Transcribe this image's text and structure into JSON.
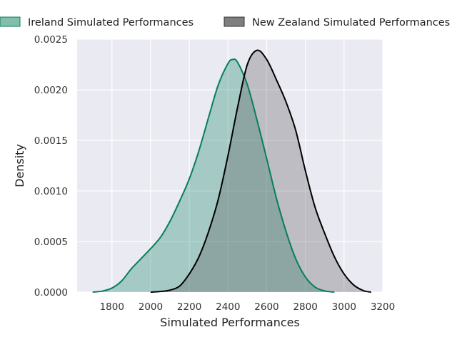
{
  "chart_data": {
    "type": "area",
    "xlabel": "Simulated Performances",
    "ylabel": "Density",
    "xlim": [
      1620,
      3200
    ],
    "ylim": [
      0,
      0.0025
    ],
    "x_ticks": [
      "1800",
      "2000",
      "2200",
      "2400",
      "2600",
      "2800",
      "3000",
      "3200"
    ],
    "y_ticks": [
      "0.0000",
      "0.0005",
      "0.0010",
      "0.0015",
      "0.0020",
      "0.0025"
    ],
    "grid": true,
    "legend_position": "top",
    "series": [
      {
        "name": "Ireland Simulated Performances",
        "color": "#077e5b",
        "fill": "#077e5b",
        "points": [
          [
            1700,
            0.0
          ],
          [
            1750,
            1e-05
          ],
          [
            1800,
            4e-05
          ],
          [
            1850,
            0.00011
          ],
          [
            1900,
            0.00023
          ],
          [
            1950,
            0.00033
          ],
          [
            2000,
            0.00043
          ],
          [
            2050,
            0.00054
          ],
          [
            2100,
            0.0007
          ],
          [
            2150,
            0.0009
          ],
          [
            2200,
            0.00112
          ],
          [
            2250,
            0.0014
          ],
          [
            2300,
            0.00173
          ],
          [
            2350,
            0.00205
          ],
          [
            2400,
            0.00226
          ],
          [
            2425,
            0.0023
          ],
          [
            2450,
            0.00227
          ],
          [
            2500,
            0.00205
          ],
          [
            2550,
            0.0017
          ],
          [
            2600,
            0.00132
          ],
          [
            2650,
            0.00093
          ],
          [
            2700,
            0.0006
          ],
          [
            2750,
            0.00033
          ],
          [
            2800,
            0.00015
          ],
          [
            2850,
            5e-05
          ],
          [
            2900,
            1.2e-05
          ],
          [
            2950,
            0.0
          ]
        ]
      },
      {
        "name": "New Zealand Simulated Performances",
        "color": "#000000",
        "fill": "#555555",
        "points": [
          [
            2000,
            0.0
          ],
          [
            2050,
            6e-06
          ],
          [
            2100,
            2e-05
          ],
          [
            2150,
            6e-05
          ],
          [
            2200,
            0.00018
          ],
          [
            2250,
            0.00035
          ],
          [
            2300,
            0.0006
          ],
          [
            2350,
            0.00092
          ],
          [
            2400,
            0.00135
          ],
          [
            2450,
            0.00183
          ],
          [
            2500,
            0.00225
          ],
          [
            2550,
            0.00239
          ],
          [
            2600,
            0.0023
          ],
          [
            2650,
            0.0021
          ],
          [
            2700,
            0.00188
          ],
          [
            2750,
            0.0016
          ],
          [
            2800,
            0.0012
          ],
          [
            2850,
            0.00084
          ],
          [
            2900,
            0.00058
          ],
          [
            2950,
            0.00035
          ],
          [
            3000,
            0.00018
          ],
          [
            3050,
            7e-05
          ],
          [
            3100,
            1.5e-05
          ],
          [
            3140,
            0.0
          ]
        ]
      }
    ]
  }
}
